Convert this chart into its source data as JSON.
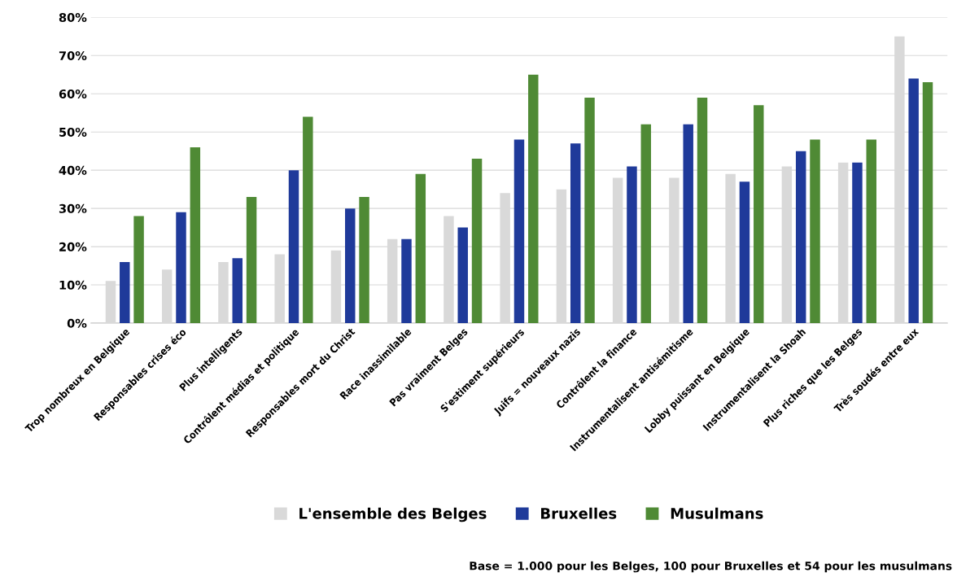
{
  "chart_data": {
    "type": "bar",
    "categories": [
      "Trop nombreux en Belgique",
      "Responsables crises éco",
      "Plus intelligents",
      "Contrôlent médias et politique",
      "Responsables mort du Christ",
      "Race inassimilable",
      "Pas vraiment Belges",
      "S'estiment supérieurs",
      "Juifs = nouveaux nazis",
      "Contrôlent la finance",
      "Instrumentalisent antisémitisme",
      "Lobby puissant en Belgique",
      "Instrumentalisent la Shoah",
      "Plus riches que les Belges",
      "Très soudés entre eux"
    ],
    "series": [
      {
        "name": "L'ensemble des Belges",
        "color": "#d9d9d9",
        "values": [
          11,
          14,
          16,
          18,
          19,
          22,
          28,
          34,
          35,
          38,
          38,
          39,
          41,
          42,
          75
        ]
      },
      {
        "name": "Bruxelles",
        "color": "#1f3a9a",
        "values": [
          16,
          29,
          17,
          40,
          30,
          22,
          25,
          48,
          47,
          41,
          52,
          37,
          45,
          42,
          64
        ]
      },
      {
        "name": "Musulmans",
        "color": "#4f8a35",
        "values": [
          28,
          46,
          33,
          54,
          33,
          39,
          43,
          65,
          59,
          52,
          59,
          57,
          48,
          48,
          63
        ]
      }
    ],
    "ylim": [
      0,
      80
    ],
    "yticks": [
      {
        "value": 0,
        "label": "0%"
      },
      {
        "value": 10,
        "label": "10%"
      },
      {
        "value": 20,
        "label": "20%"
      },
      {
        "value": 30,
        "label": "30%"
      },
      {
        "value": 40,
        "label": "40%"
      },
      {
        "value": 50,
        "label": "50%"
      },
      {
        "value": 60,
        "label": "60%"
      },
      {
        "value": 70,
        "label": "70%"
      },
      {
        "value": 80,
        "label": "80%"
      }
    ],
    "grid": "y",
    "legend": "bottom",
    "annotations": [
      "Base = 1.000 pour les Belges, 100 pour Bruxelles et 54 pour les musulmans"
    ]
  }
}
